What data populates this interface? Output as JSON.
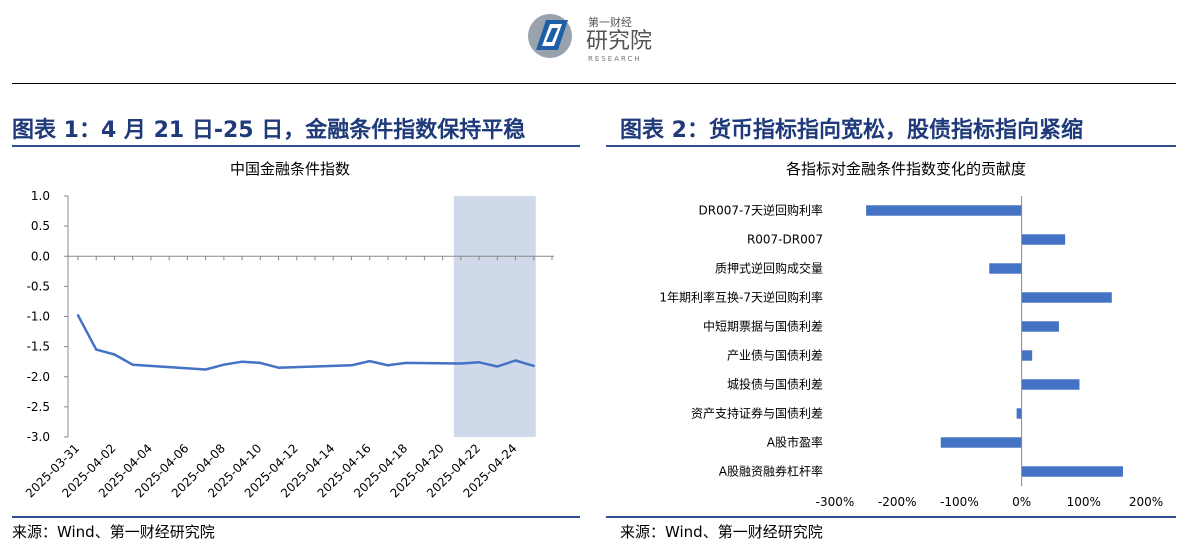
{
  "header": {
    "logo_small": "第一财经",
    "logo_big": "研究院",
    "logo_sub": "RESEARCH"
  },
  "left": {
    "panel_title": "图表 1：4 月 21 日-25 日，金融条件指数保持平稳",
    "source": "来源：Wind、第一财经研究院"
  },
  "right": {
    "panel_title": "图表 2：货币指标指向宽松，股债指标指向紧缩",
    "source": "来源：Wind、第一财经研究院"
  },
  "colors": {
    "series": "#4472c4",
    "shade": "#d0d9ea",
    "title": "#1f3a7a",
    "rule": "#2f4f8f"
  },
  "chart_data": [
    {
      "type": "line",
      "title": "中国金融条件指数",
      "xlabel": "",
      "ylabel": "",
      "ylim": [
        -3.0,
        1.0
      ],
      "yticks": [
        "1.0",
        "0.5",
        "0.0",
        "-0.5",
        "-1.0",
        "-1.5",
        "-2.0",
        "-2.5",
        "-3.0"
      ],
      "xtick_labels": [
        "2025-03-31",
        "2025-04-02",
        "2025-04-04",
        "2025-04-06",
        "2025-04-08",
        "2025-04-10",
        "2025-04-12",
        "2025-04-14",
        "2025-04-16",
        "2025-04-18",
        "2025-04-20",
        "2025-04-22",
        "2025-04-24"
      ],
      "highlight_range": [
        "2025-04-21",
        "2025-04-25"
      ],
      "grid": false,
      "series": [
        {
          "x": [
            "2025-03-31",
            "2025-04-01",
            "2025-04-02",
            "2025-04-03",
            "2025-04-07",
            "2025-04-08",
            "2025-04-09",
            "2025-04-10",
            "2025-04-11",
            "2025-04-14",
            "2025-04-15",
            "2025-04-16",
            "2025-04-17",
            "2025-04-18",
            "2025-04-21",
            "2025-04-22",
            "2025-04-23",
            "2025-04-24",
            "2025-04-25"
          ],
          "values": [
            -0.98,
            -1.55,
            -1.63,
            -1.8,
            -1.88,
            -1.8,
            -1.75,
            -1.77,
            -1.85,
            -1.82,
            -1.81,
            -1.74,
            -1.81,
            -1.77,
            -1.78,
            -1.76,
            -1.83,
            -1.73,
            -1.82
          ]
        }
      ]
    },
    {
      "type": "bar",
      "orientation": "horizontal",
      "title": "各指标对金融条件指数变化的贡献度",
      "xlabel": "",
      "ylabel": "",
      "xlim": [
        -300,
        200
      ],
      "xticks": [
        "-300%",
        "-200%",
        "-100%",
        "0%",
        "100%",
        "200%"
      ],
      "grid": false,
      "categories": [
        "DR007-7天逆回购利率",
        "R007-DR007",
        "质押式逆回购成交量",
        "1年期利率互换-7天逆回购利率",
        "中短期票据与国债利差",
        "产业债与国债利差",
        "城投债与国债利差",
        "资产支持证券与国债利差",
        "A股市盈率",
        "A股融资融券杠杆率"
      ],
      "values": [
        -250,
        70,
        -52,
        145,
        60,
        17,
        93,
        -8,
        -130,
        163
      ]
    }
  ]
}
